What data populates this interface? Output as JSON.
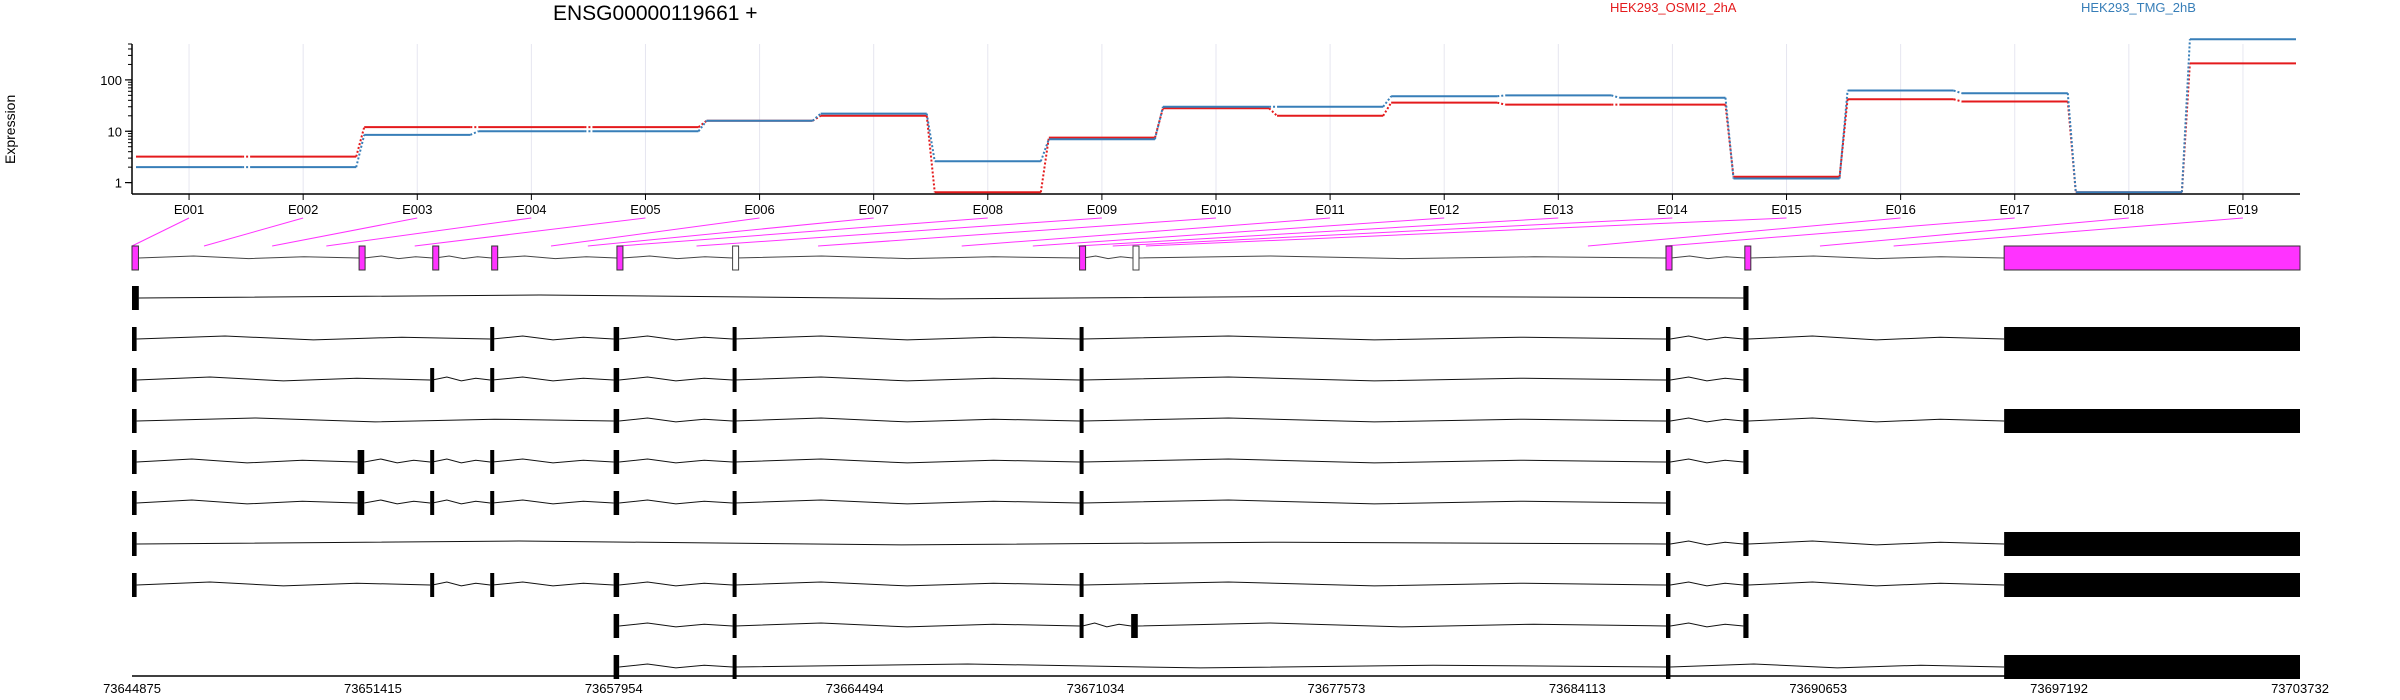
{
  "title": "ENSG00000119661 +",
  "ylabel": "Expression",
  "chart_data": {
    "type": "line",
    "title": "ENSG00000119661 +",
    "ylabel": "Expression",
    "yscale": "log",
    "ylim": [
      0.6,
      500
    ],
    "yticks": [
      1,
      10,
      100
    ],
    "yticklabels": [
      "1",
      "10",
      "100"
    ],
    "categories": [
      "E001",
      "E002",
      "E003",
      "E004",
      "E005",
      "E006",
      "E007",
      "E008",
      "E009",
      "E010",
      "E011",
      "E012",
      "E013",
      "E014",
      "E015",
      "E016",
      "E017",
      "E018",
      "E019"
    ],
    "series": [
      {
        "name": "HEK293_OSMI2_2hA",
        "color": "#e41a1c",
        "values": [
          3.2,
          3.2,
          12,
          12,
          12,
          16,
          20,
          0.65,
          7.5,
          28,
          20,
          36,
          33,
          33,
          1.3,
          42,
          38,
          0.65,
          210
        ]
      },
      {
        "name": "HEK293_TMG_2hB",
        "color": "#377eb8",
        "values": [
          2.0,
          2.0,
          8.5,
          10,
          10,
          16,
          22,
          2.6,
          7.0,
          30,
          30,
          48,
          50,
          45,
          1.2,
          62,
          55,
          0.65,
          620
        ]
      }
    ],
    "exon_coords": [
      [
        73644875,
        73645050
      ],
      [
        73646830,
        73647120
      ],
      [
        73648680,
        73648760
      ],
      [
        73650150,
        73650240
      ],
      [
        73652550,
        73652750
      ],
      [
        73656250,
        73656350
      ],
      [
        73657250,
        73657400
      ],
      [
        73658100,
        73658180
      ],
      [
        73660200,
        73660500
      ],
      [
        73663500,
        73663600
      ],
      [
        73667400,
        73667700
      ],
      [
        73669330,
        73669470
      ],
      [
        73670550,
        73670700
      ],
      [
        73671500,
        73671700
      ],
      [
        73672400,
        73672550
      ],
      [
        73684400,
        73684540
      ],
      [
        73686500,
        73686640
      ],
      [
        73690700,
        73690850
      ],
      [
        73692700,
        73703732
      ]
    ],
    "genomic_axis": {
      "range": [
        73644875,
        73703732
      ],
      "ticks": [
        73644875,
        73651415,
        73657954,
        73664494,
        73671034,
        73677573,
        73684113,
        73690653,
        73697192,
        73703732
      ],
      "ticklabels": [
        "73644875",
        "73651415",
        "73657954",
        "73664494",
        "73671034",
        "73677573",
        "73684113",
        "73690653",
        "73697192",
        "73703732"
      ]
    },
    "gene_model": {
      "color": "#ff33ff",
      "exons": [
        [
          73644875,
          73645050
        ],
        [
          73651040,
          73651180
        ],
        [
          73653040,
          73653100
        ],
        [
          73654640,
          73654700
        ],
        [
          73658040,
          73658180
        ],
        [
          73661180,
          73661260
        ],
        [
          73670600,
          73670700
        ],
        [
          73672050,
          73672200
        ],
        [
          73686520,
          73686660
        ],
        [
          73688660,
          73688800
        ],
        [
          73695700,
          73703732
        ]
      ],
      "outlined_exons": [
        [
          73661180,
          73661260
        ],
        [
          73672050,
          73672200
        ]
      ]
    },
    "transcripts": [
      {
        "exons": [
          [
            73644875,
            73645060
          ],
          [
            73688620,
            73688760
          ]
        ],
        "lines": "wavy"
      },
      {
        "exons": [
          [
            73644875,
            73645000
          ],
          [
            73654600,
            73654660
          ],
          [
            73657950,
            73658100
          ],
          [
            73661180,
            73661240
          ],
          [
            73670600,
            73670680
          ],
          [
            73686520,
            73686640
          ],
          [
            73688620,
            73688760
          ],
          [
            73695700,
            73703732
          ]
        ]
      },
      {
        "exons": [
          [
            73644875,
            73645000
          ],
          [
            73652970,
            73653030
          ],
          [
            73654600,
            73654660
          ],
          [
            73657950,
            73658100
          ],
          [
            73661180,
            73661240
          ],
          [
            73670600,
            73670680
          ],
          [
            73686520,
            73686640
          ],
          [
            73688620,
            73688760
          ]
        ]
      },
      {
        "exons": [
          [
            73644875,
            73645000
          ],
          [
            73657950,
            73658100
          ],
          [
            73661180,
            73661240
          ],
          [
            73670600,
            73670680
          ],
          [
            73686520,
            73686640
          ],
          [
            73688620,
            73688760
          ],
          [
            73695700,
            73703732
          ]
        ]
      },
      {
        "exons": [
          [
            73644875,
            73645000
          ],
          [
            73651000,
            73651180
          ],
          [
            73652970,
            73653030
          ],
          [
            73654600,
            73654660
          ],
          [
            73657950,
            73658100
          ],
          [
            73661180,
            73661240
          ],
          [
            73670600,
            73670680
          ],
          [
            73686520,
            73686640
          ],
          [
            73688620,
            73688760
          ]
        ]
      },
      {
        "exons": [
          [
            73644875,
            73645000
          ],
          [
            73651000,
            73651180
          ],
          [
            73652970,
            73653030
          ],
          [
            73654600,
            73654660
          ],
          [
            73657950,
            73658100
          ],
          [
            73661180,
            73661240
          ],
          [
            73670600,
            73670680
          ],
          [
            73686520,
            73686640
          ]
        ]
      },
      {
        "exons": [
          [
            73644875,
            73645000
          ],
          [
            73686520,
            73686640
          ],
          [
            73688620,
            73688760
          ],
          [
            73695700,
            73703732
          ]
        ]
      },
      {
        "exons": [
          [
            73644875,
            73645000
          ],
          [
            73652970,
            73653030
          ],
          [
            73654600,
            73654660
          ],
          [
            73657950,
            73658100
          ],
          [
            73661180,
            73661240
          ],
          [
            73670600,
            73670680
          ],
          [
            73686520,
            73686640
          ],
          [
            73688620,
            73688760
          ],
          [
            73695700,
            73703732
          ]
        ]
      },
      {
        "exons": [
          [
            73657950,
            73658100
          ],
          [
            73661180,
            73661240
          ],
          [
            73670600,
            73670680
          ],
          [
            73672000,
            73672180
          ],
          [
            73686520,
            73686640
          ],
          [
            73688620,
            73688760
          ]
        ]
      },
      {
        "exons": [
          [
            73657950,
            73658100
          ],
          [
            73661180,
            73661240
          ],
          [
            73686520,
            73686640
          ],
          [
            73695700,
            73703732
          ]
        ]
      }
    ]
  }
}
